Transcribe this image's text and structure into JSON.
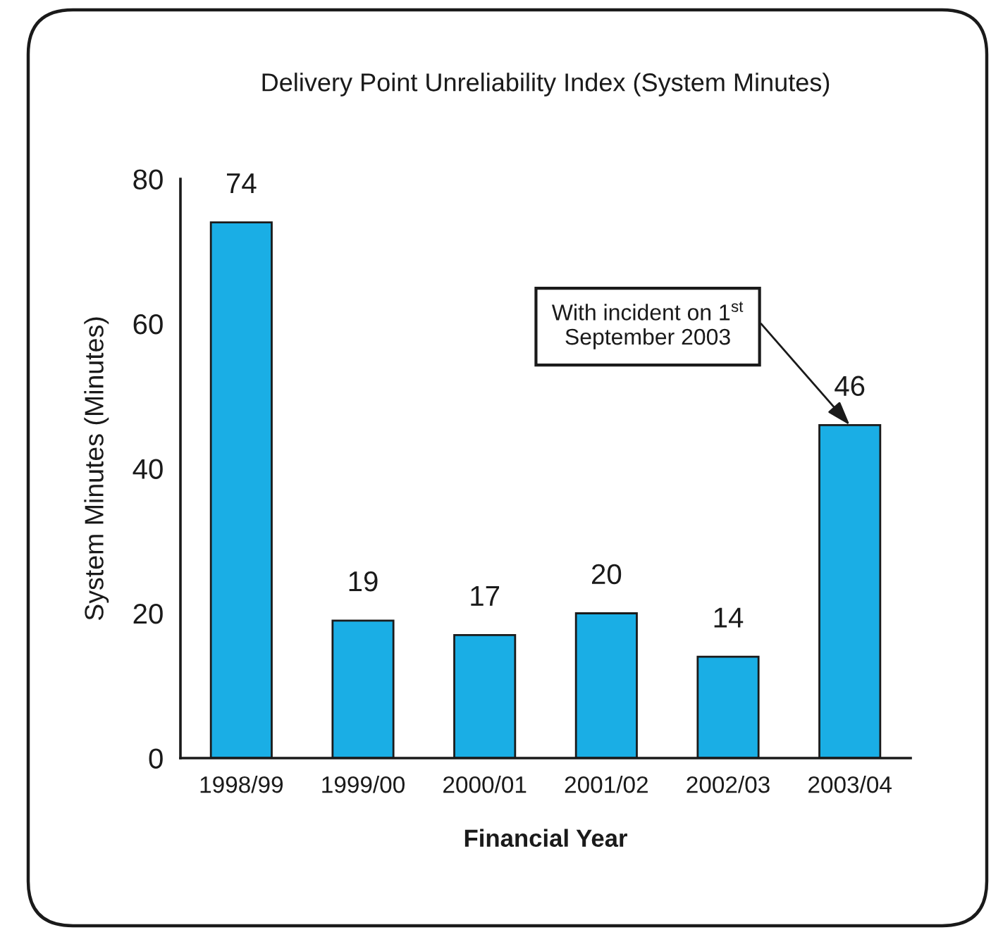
{
  "chart_data": {
    "type": "bar",
    "title": "Delivery Point Unreliability Index (System Minutes)",
    "xlabel": "Financial Year",
    "ylabel": "System Minutes (Minutes)",
    "categories": [
      "1998/99",
      "1999/00",
      "2000/01",
      "2001/02",
      "2002/03",
      "2003/04"
    ],
    "values": [
      74,
      19,
      17,
      20,
      14,
      46
    ],
    "color": "#1aaee5",
    "ylim": [
      0,
      80
    ],
    "yticks": [
      0,
      20,
      40,
      60,
      80
    ],
    "grid": false,
    "data_labels": true,
    "annotations": [
      {
        "text": "With incident on 1$^{st}$\nSeptember 2003",
        "x": "2003/04",
        "y": 46
      }
    ]
  }
}
